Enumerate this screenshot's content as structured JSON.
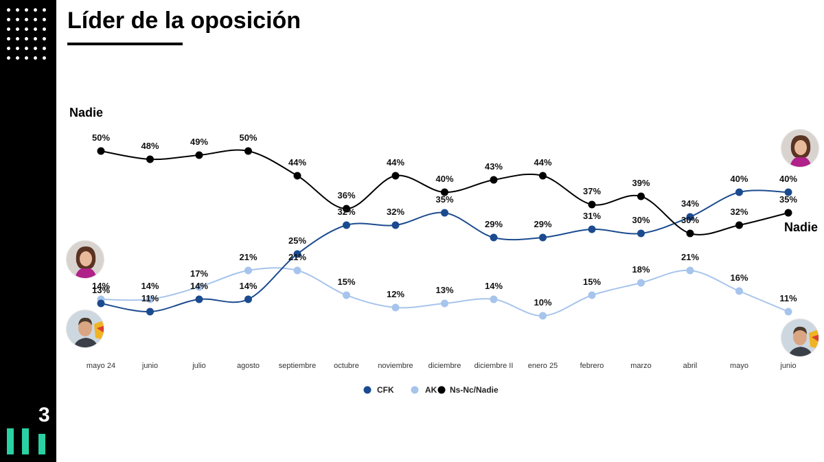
{
  "page": {
    "title": "Líder de la oposición",
    "brand_number": "3",
    "colors": {
      "accent": "#2ad1a3",
      "cfk": "#1b4b8f",
      "ak": "#a6c4ec",
      "nadie": "#000000"
    }
  },
  "labels": {
    "nadie_top": "Nadie",
    "nadie_right": "Nadie"
  },
  "icons": {
    "cfk_avatar_left": "cfk-photo",
    "ak_avatar_left": "ak-photo",
    "cfk_avatar_right": "cfk-photo",
    "ak_avatar_right": "ak-photo"
  },
  "chart_data": {
    "type": "line",
    "title": "",
    "xlabel": "",
    "ylabel": "",
    "ylim": [
      0,
      60
    ],
    "grid": false,
    "legend_position": "bottom-center",
    "categories": [
      "mayo 24",
      "junio",
      "julio",
      "agosto",
      "septiembre",
      "octubre",
      "noviembre",
      "diciembre",
      "diciembre II",
      "enero 25",
      "febrero",
      "marzo",
      "abril",
      "mayo",
      "junio"
    ],
    "series": [
      {
        "name": "CFK",
        "color": "#1b4b8f",
        "values": [
          13,
          11,
          14,
          14,
          25,
          32,
          32,
          35,
          29,
          29,
          31,
          30,
          34,
          40,
          40
        ],
        "labels": [
          "13%",
          "11%",
          "14%",
          "14%",
          "25%",
          "32%",
          "32%",
          "35%",
          "29%",
          "29%",
          "31%",
          "30%",
          "34%",
          "40%",
          "40%"
        ]
      },
      {
        "name": "AK",
        "color": "#a6c4ec",
        "values": [
          14,
          14,
          17,
          21,
          21,
          15,
          12,
          13,
          14,
          10,
          15,
          18,
          21,
          16,
          11
        ],
        "labels": [
          "14%",
          "14%",
          "17%",
          "21%",
          "21%",
          "15%",
          "12%",
          "13%",
          "14%",
          "10%",
          "15%",
          "18%",
          "21%",
          "16%",
          "11%"
        ]
      },
      {
        "name": "Ns-Nc/Nadie",
        "color": "#000000",
        "values": [
          50,
          48,
          49,
          50,
          44,
          36,
          44,
          40,
          43,
          44,
          37,
          39,
          30,
          32,
          35
        ],
        "labels": [
          "50%",
          "48%",
          "49%",
          "50%",
          "44%",
          "36%",
          "44%",
          "40%",
          "43%",
          "44%",
          "37%",
          "39%",
          "30%",
          "32%",
          "35%"
        ]
      }
    ]
  }
}
